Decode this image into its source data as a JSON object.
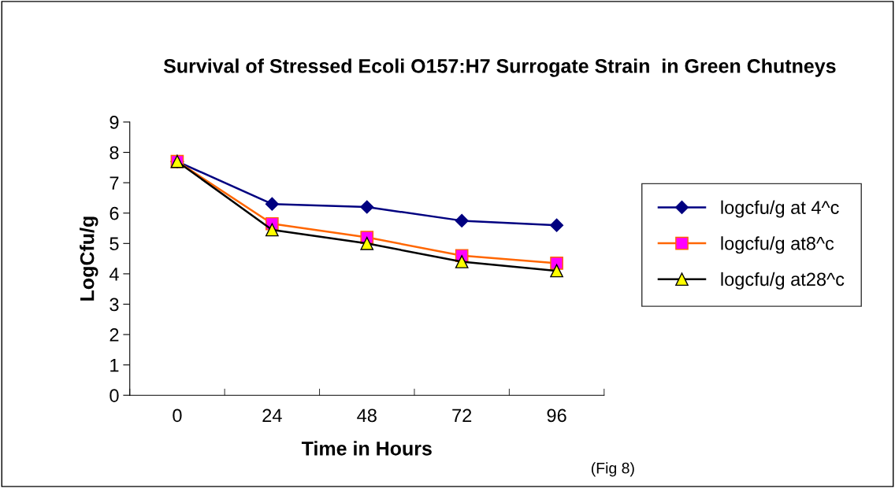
{
  "chart_data": {
    "type": "line",
    "title": "Survival of Stressed Ecoli O157:H7 Surrogate Strain  in Green Chutneys",
    "xlabel": "Time in Hours",
    "ylabel": "LogCfu/g",
    "categories": [
      "0",
      "24",
      "48",
      "72",
      "96"
    ],
    "series": [
      {
        "name": "logcfu/g at 4^c",
        "color": "#000080",
        "marker": "diamond",
        "colors": [
          "#000080",
          "#000080",
          "#000080",
          "#000080",
          "#000080"
        ],
        "values": [
          7.7,
          6.3,
          6.2,
          5.75,
          5.6
        ]
      },
      {
        "name": "logcfu/g at8^c",
        "color": "#ff6600",
        "marker": "square",
        "colors": [
          "#ff00ff",
          "#ff00ff",
          "#ff00ff",
          "#ff00ff",
          "#ff00ff"
        ],
        "values": [
          7.7,
          5.65,
          5.2,
          4.6,
          4.35
        ]
      },
      {
        "name": "logcfu/g at28^c",
        "color": "#000000",
        "marker": "triangle",
        "colors": [
          "#ffff00",
          "#ffff00",
          "#ffff00",
          "#ffff00",
          "#ffff00"
        ],
        "values": [
          7.7,
          5.45,
          5.0,
          4.4,
          4.1
        ]
      }
    ],
    "ylim": [
      0,
      9
    ],
    "yticks": [
      0,
      1,
      2,
      3,
      4,
      5,
      6,
      7,
      8,
      9
    ],
    "grid": false,
    "legend": "right",
    "annotations": [
      "(Fig 8)"
    ]
  }
}
